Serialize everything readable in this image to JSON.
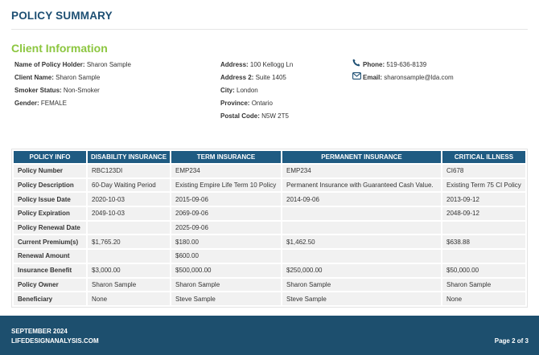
{
  "header": {
    "title": "POLICY SUMMARY"
  },
  "client": {
    "heading": "Client Information",
    "columns": [
      [
        {
          "label": "Name of Policy Holder:",
          "value": "Sharon Sample"
        },
        {
          "label": "Client Name:",
          "value": "Sharon Sample"
        },
        {
          "label": "Smoker Status:",
          "value": "Non-Smoker"
        },
        {
          "label": "Gender:",
          "value": "FEMALE"
        }
      ],
      [
        {
          "label": "Address:",
          "value": "100 Kellogg Ln"
        },
        {
          "label": "Address 2:",
          "value": "Suite 1405"
        },
        {
          "label": "City:",
          "value": "London"
        },
        {
          "label": "Province:",
          "value": "Ontario"
        },
        {
          "label": "Postal Code:",
          "value": "N5W 2T5"
        }
      ],
      [
        {
          "label": "Phone:",
          "value": "519-636-8139"
        },
        {
          "label": "Email:",
          "value": "sharonsample@lda.com"
        }
      ]
    ]
  },
  "table": {
    "columns": [
      "POLICY INFO",
      "DISABILITY INSURANCE",
      "TERM INSURANCE",
      "PERMANENT INSURANCE",
      "CRITICAL ILLNESS"
    ],
    "rows": [
      [
        "Policy Number",
        "RBC123DI",
        "EMP234",
        "EMP234",
        "CI678"
      ],
      [
        "Policy Description",
        "60-Day Waiting Period",
        "Existing Empire Life Term 10 Policy",
        "Permanent Insurance with Guaranteed Cash Value.",
        "Existing Term 75 CI Policy"
      ],
      [
        "Policy Issue Date",
        "2020-10-03",
        "2015-09-06",
        "2014-09-06",
        "2013-09-12"
      ],
      [
        "Policy Expiration",
        "2049-10-03",
        "2069-09-06",
        null,
        "2048-09-12"
      ],
      [
        "Policy Renewal Date",
        null,
        "2025-09-06",
        null,
        null
      ],
      [
        "Current Premium(s)",
        "$1,765.20",
        "$180.00",
        "$1,462.50",
        "$638.88"
      ],
      [
        "Renewal Amount",
        null,
        "$600.00",
        null,
        null
      ],
      [
        "Insurance Benefit",
        "$3,000.00",
        "$500,000.00",
        "$250,000.00",
        "$50,000.00"
      ],
      [
        "Policy Owner",
        "Sharon Sample",
        "Sharon Sample",
        "Sharon Sample",
        "Sharon Sample"
      ],
      [
        "Beneficiary",
        "None",
        "Steve Sample",
        "Steve Sample",
        "None"
      ]
    ]
  },
  "footer": {
    "date": "SEPTEMBER 2024",
    "website": "LIFEDESIGNANALYSIS.COM",
    "page": "Page 2 of 3"
  }
}
